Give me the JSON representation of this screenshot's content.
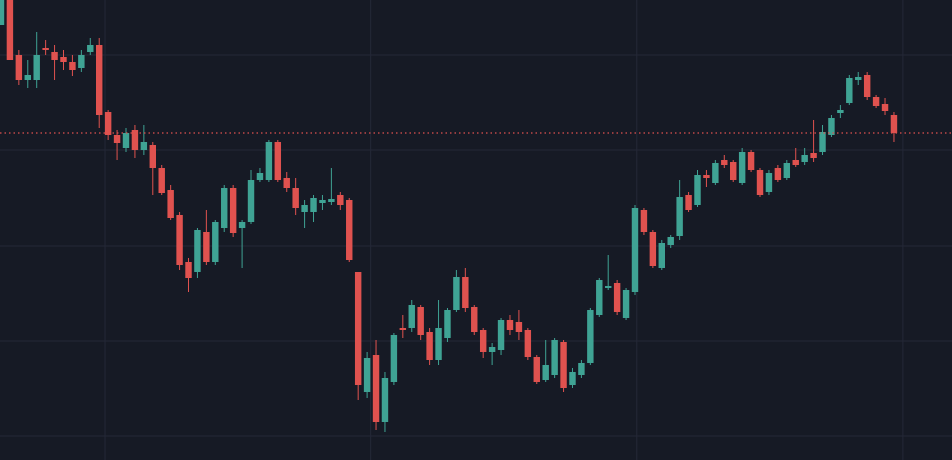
{
  "chart_data": {
    "type": "candlestick",
    "up_color": "#3fa394",
    "down_color": "#e0524f",
    "background": "#161a25",
    "grid": true,
    "grid_color": "#242837",
    "xlim": [
      -0.11,
      106.5
    ],
    "ylim": [
      0,
      460
    ],
    "xticks": [
      11.65,
      41.4,
      71.2,
      101.0
    ],
    "yticks": [
      24,
      119,
      214,
      310,
      405
    ],
    "price_line": 327,
    "price_line_color": "#e0524f",
    "open": [
      435,
      460,
      405,
      380,
      380,
      412,
      408,
      403,
      398,
      392,
      408,
      415,
      348,
      325,
      312,
      330,
      310,
      315,
      292,
      270,
      245,
      198,
      188,
      228,
      198,
      232,
      272,
      232,
      238,
      280,
      280,
      318,
      282,
      272,
      248,
      248,
      257,
      258,
      265,
      260,
      188,
      68,
      105,
      38,
      78,
      132,
      132,
      153,
      128,
      100,
      122,
      150,
      183,
      153,
      130,
      108,
      110,
      140,
      138,
      130,
      103,
      80,
      85,
      118,
      75,
      85,
      97,
      145,
      172,
      177,
      142,
      168,
      250,
      228,
      192,
      215,
      224,
      265,
      255,
      285,
      277,
      300,
      298,
      277,
      308,
      290,
      268,
      292,
      282,
      300,
      298,
      307,
      308,
      325,
      347,
      357,
      380,
      385,
      363,
      356,
      345
    ],
    "high": [
      460,
      460,
      410,
      400,
      428,
      420,
      415,
      410,
      405,
      410,
      422,
      422,
      350,
      330,
      332,
      335,
      335,
      318,
      295,
      275,
      248,
      202,
      232,
      250,
      240,
      275,
      275,
      240,
      290,
      292,
      320,
      320,
      288,
      282,
      260,
      265,
      265,
      292,
      268,
      262,
      188,
      108,
      120,
      88,
      127,
      145,
      160,
      155,
      132,
      160,
      152,
      190,
      192,
      155,
      132,
      117,
      142,
      145,
      150,
      132,
      105,
      120,
      122,
      120,
      92,
      100,
      152,
      182,
      205,
      180,
      172,
      255,
      252,
      230,
      220,
      225,
      280,
      268,
      290,
      290,
      300,
      305,
      300,
      312,
      310,
      292,
      290,
      295,
      300,
      312,
      312,
      340,
      335,
      345,
      355,
      385,
      388,
      388,
      365,
      362,
      348
    ],
    "low": [
      435,
      400,
      375,
      372,
      372,
      405,
      380,
      390,
      384,
      388,
      405,
      332,
      320,
      300,
      308,
      302,
      305,
      265,
      265,
      240,
      190,
      168,
      182,
      195,
      195,
      228,
      223,
      192,
      236,
      278,
      278,
      278,
      268,
      245,
      232,
      238,
      250,
      255,
      250,
      198,
      60,
      62,
      30,
      28,
      75,
      122,
      128,
      120,
      95,
      95,
      118,
      148,
      148,
      125,
      102,
      95,
      105,
      125,
      120,
      100,
      76,
      78,
      82,
      68,
      72,
      82,
      95,
      143,
      170,
      145,
      140,
      165,
      225,
      192,
      190,
      212,
      220,
      248,
      253,
      273,
      275,
      292,
      278,
      275,
      288,
      263,
      265,
      278,
      280,
      293,
      295,
      298,
      305,
      323,
      342,
      355,
      375,
      360,
      352,
      345,
      318
    ],
    "close": [
      460,
      400,
      380,
      385,
      405,
      410,
      400,
      398,
      390,
      405,
      415,
      345,
      325,
      317,
      327,
      310,
      318,
      292,
      267,
      242,
      195,
      182,
      230,
      198,
      238,
      272,
      227,
      238,
      280,
      287,
      318,
      280,
      272,
      252,
      255,
      262,
      260,
      261,
      255,
      200,
      75,
      102,
      38,
      82,
      125,
      130,
      155,
      125,
      100,
      132,
      150,
      183,
      152,
      128,
      108,
      113,
      140,
      130,
      128,
      103,
      78,
      95,
      120,
      72,
      88,
      97,
      150,
      180,
      174,
      148,
      170,
      252,
      228,
      194,
      217,
      223,
      263,
      250,
      285,
      282,
      297,
      295,
      280,
      308,
      290,
      265,
      287,
      280,
      297,
      295,
      305,
      302,
      328,
      342,
      350,
      382,
      383,
      363,
      354,
      349,
      327
    ]
  }
}
